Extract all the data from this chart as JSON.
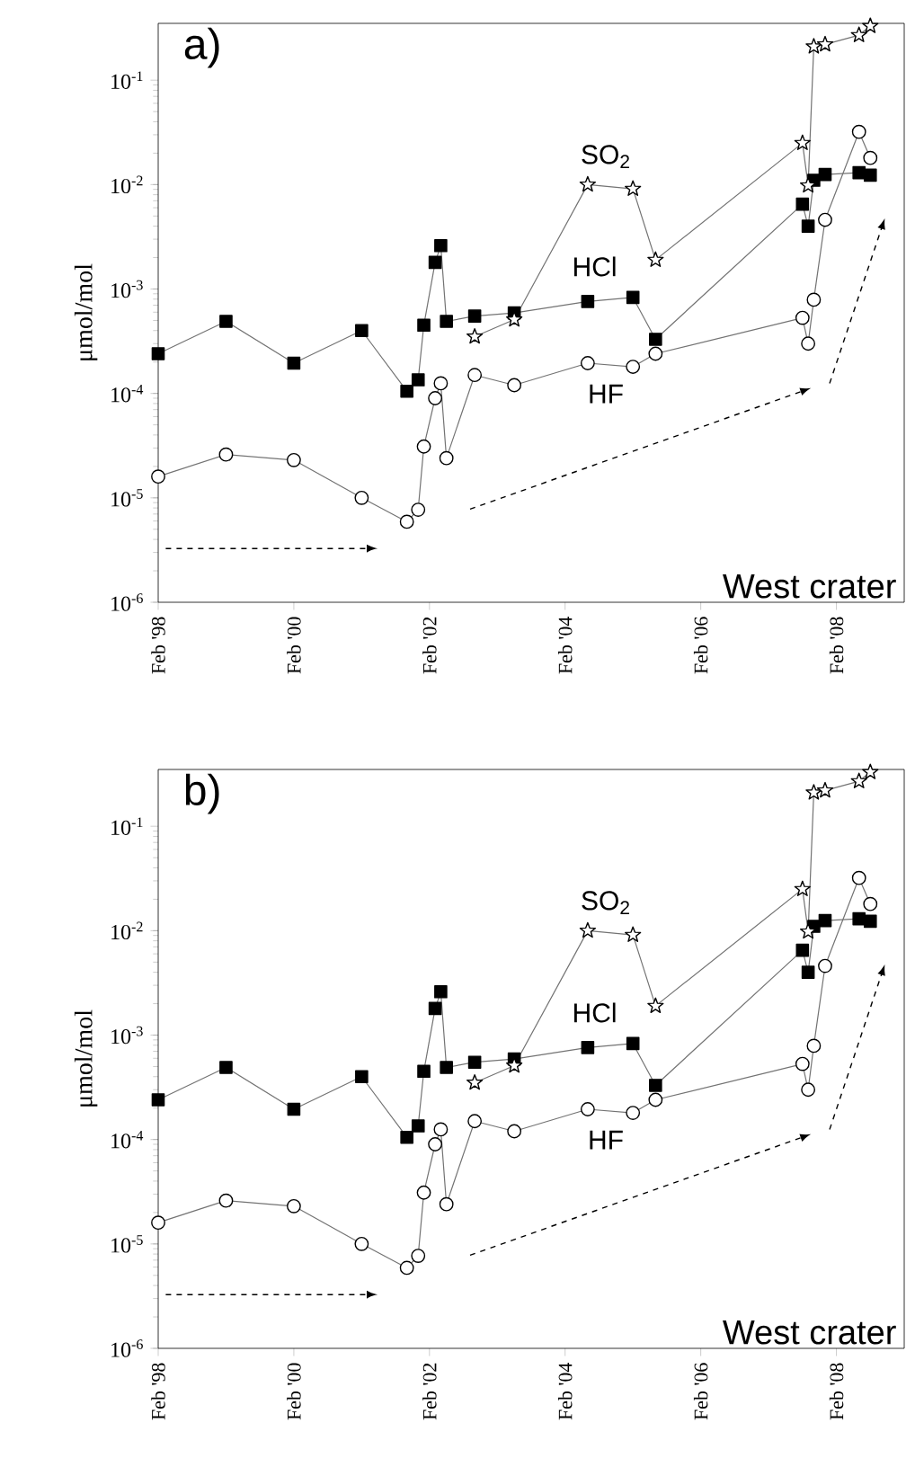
{
  "chart_data": [
    {
      "type": "line",
      "title": "a)",
      "ylabel": "μmol/mol",
      "annotations": [
        "West crater"
      ],
      "log": "y",
      "legend": false,
      "grid": false,
      "xlim": [
        "1998-02",
        "2009-02"
      ],
      "ylim": [
        1e-06,
        0.35
      ],
      "xticks": [
        {
          "value": "1998-02",
          "label": "Feb '98"
        },
        {
          "value": "2000-02",
          "label": "Feb '00"
        },
        {
          "value": "2002-02",
          "label": "Feb '02"
        },
        {
          "value": "2004-02",
          "label": "Feb '04"
        },
        {
          "value": "2006-02",
          "label": "Feb '06"
        },
        {
          "value": "2008-02",
          "label": "Feb '08"
        }
      ],
      "yticks": [
        {
          "value": 1e-06,
          "label": "10$^{-6}$"
        },
        {
          "value": 1e-05,
          "label": "10$^{-5}$"
        },
        {
          "value": 0.0001,
          "label": "10$^{-4}$"
        },
        {
          "value": 0.001,
          "label": "10$^{-3}$"
        },
        {
          "value": 0.01,
          "label": "10$^{-2}$"
        },
        {
          "value": 0.1,
          "label": "10$^{-1}$"
        }
      ],
      "series": [
        {
          "name": "HCl",
          "color": "#000000",
          "marker": "square",
          "x": [
            "1998-02",
            "1999-02",
            "2000-02",
            "2001-02",
            "2001-10",
            "2001-12",
            "2002-01",
            "2002-03",
            "2002-04",
            "2002-05",
            "2002-10",
            "2003-05",
            "2004-06",
            "2005-02",
            "2005-06",
            "2007-08",
            "2007-09",
            "2007-10",
            "2007-12",
            "2008-06",
            "2008-08"
          ],
          "values": [
            0.00024,
            0.00049,
            0.000195,
            0.0004,
            0.000105,
            0.000135,
            0.00045,
            0.0018,
            0.0026,
            0.00049,
            0.00055,
            0.00059,
            0.00076,
            0.00083,
            0.00033,
            0.0065,
            0.004,
            0.011,
            0.0125,
            0.013,
            0.0123
          ]
        },
        {
          "name": "HF",
          "color": "#ffffff",
          "marker": "circle",
          "x": [
            "1998-02",
            "1999-02",
            "2000-02",
            "2001-02",
            "2001-10",
            "2001-12",
            "2002-01",
            "2002-03",
            "2002-04",
            "2002-05",
            "2002-10",
            "2003-05",
            "2004-06",
            "2005-02",
            "2005-06",
            "2007-08",
            "2007-09",
            "2007-10",
            "2007-12",
            "2008-06",
            "2008-08"
          ],
          "values": [
            1.6e-05,
            2.6e-05,
            2.3e-05,
            1e-05,
            5.9e-06,
            7.7e-06,
            3.1e-05,
            9e-05,
            0.000125,
            2.4e-05,
            0.00015,
            0.00012,
            0.000195,
            0.00018,
            0.00024,
            0.00053,
            0.0003,
            0.00079,
            0.0046,
            0.032,
            0.018
          ]
        },
        {
          "name": "SO$_{2}$",
          "color": "#ffffff",
          "marker": "star",
          "x": [
            "2002-10",
            "2003-05",
            "2004-06",
            "2005-02",
            "2005-06",
            "2007-08",
            "2007-09",
            "2007-10",
            "2007-12",
            "2008-06",
            "2008-08"
          ],
          "values": [
            0.00035,
            0.00051,
            0.01,
            0.0091,
            0.0019,
            0.025,
            0.0098,
            0.21,
            0.22,
            0.27,
            0.33
          ]
        }
      ]
    },
    {
      "type": "line",
      "title": "b)",
      "ylabel": "μmol/mol",
      "annotations": [
        "West crater"
      ],
      "log": "y",
      "legend": false,
      "grid": false,
      "xlim": [
        "1998-02",
        "2009-02"
      ],
      "ylim": [
        1e-06,
        0.35
      ],
      "xticks": [
        {
          "value": "1998-02",
          "label": "Feb '98"
        },
        {
          "value": "2000-02",
          "label": "Feb '00"
        },
        {
          "value": "2002-02",
          "label": "Feb '02"
        },
        {
          "value": "2004-02",
          "label": "Feb '04"
        },
        {
          "value": "2006-02",
          "label": "Feb '06"
        },
        {
          "value": "2008-02",
          "label": "Feb '08"
        }
      ],
      "yticks": [
        {
          "value": 1e-06,
          "label": "10$^{-6}$"
        },
        {
          "value": 1e-05,
          "label": "10$^{-5}$"
        },
        {
          "value": 0.0001,
          "label": "10$^{-4}$"
        },
        {
          "value": 0.001,
          "label": "10$^{-3}$"
        },
        {
          "value": 0.01,
          "label": "10$^{-2}$"
        },
        {
          "value": 0.1,
          "label": "10$^{-1}$"
        }
      ],
      "series": [
        {
          "name": "HCl",
          "color": "#000000",
          "marker": "square",
          "x": [
            "1998-02",
            "1999-02",
            "2000-02",
            "2001-02",
            "2001-10",
            "2001-12",
            "2002-01",
            "2002-03",
            "2002-04",
            "2002-05",
            "2002-10",
            "2003-05",
            "2004-06",
            "2005-02",
            "2005-06",
            "2007-08",
            "2007-09",
            "2007-10",
            "2007-12",
            "2008-06",
            "2008-08"
          ],
          "values": [
            0.00024,
            0.00049,
            0.000195,
            0.0004,
            0.000105,
            0.000135,
            0.00045,
            0.0018,
            0.0026,
            0.00049,
            0.00055,
            0.00059,
            0.00076,
            0.00083,
            0.00033,
            0.0065,
            0.004,
            0.011,
            0.0125,
            0.013,
            0.0123
          ]
        },
        {
          "name": "HF",
          "color": "#ffffff",
          "marker": "circle",
          "x": [
            "1998-02",
            "1999-02",
            "2000-02",
            "2001-02",
            "2001-10",
            "2001-12",
            "2002-01",
            "2002-03",
            "2002-04",
            "2002-05",
            "2002-10",
            "2003-05",
            "2004-06",
            "2005-02",
            "2005-06",
            "2007-08",
            "2007-09",
            "2007-10",
            "2007-12",
            "2008-06",
            "2008-08"
          ],
          "values": [
            1.6e-05,
            2.6e-05,
            2.3e-05,
            1e-05,
            5.9e-06,
            7.7e-06,
            3.1e-05,
            9e-05,
            0.000125,
            2.4e-05,
            0.00015,
            0.00012,
            0.000195,
            0.00018,
            0.00024,
            0.00053,
            0.0003,
            0.00079,
            0.0046,
            0.032,
            0.018
          ]
        },
        {
          "name": "SO$_{2}$",
          "color": "#ffffff",
          "marker": "star",
          "x": [
            "2002-10",
            "2003-05",
            "2004-06",
            "2005-02",
            "2005-06",
            "2007-08",
            "2007-09",
            "2007-10",
            "2007-12",
            "2008-06",
            "2008-08"
          ],
          "values": [
            0.00035,
            0.00051,
            0.01,
            0.0091,
            0.0019,
            0.025,
            0.0098,
            0.21,
            0.22,
            0.27,
            0.33
          ]
        }
      ]
    }
  ]
}
